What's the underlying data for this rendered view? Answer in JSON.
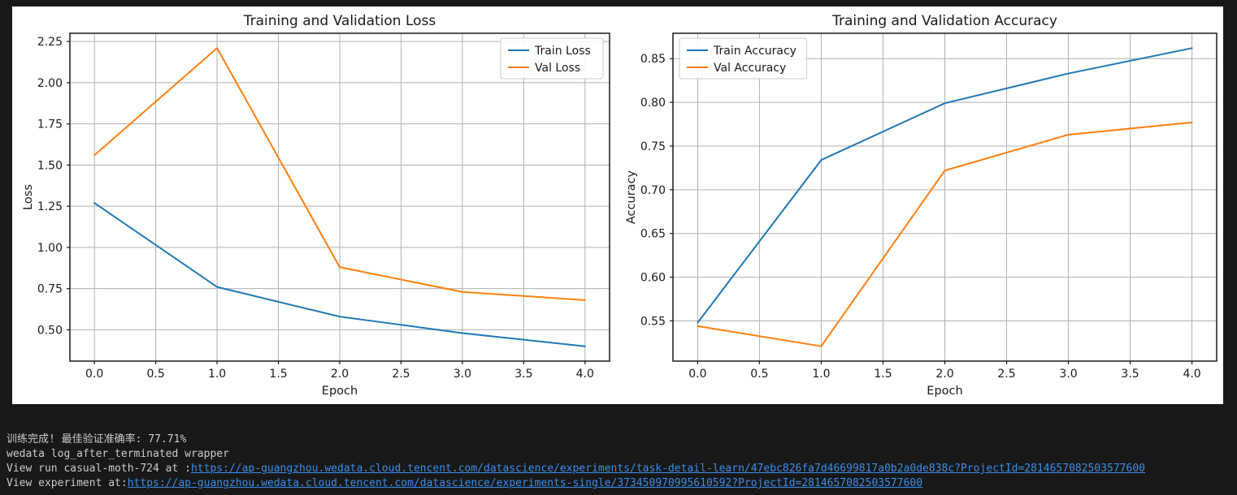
{
  "page": {
    "background": "#181818",
    "figure_background": "#ffffff"
  },
  "chart_data": [
    {
      "type": "line",
      "name": "loss-chart",
      "title": "Training and Validation Loss",
      "xlabel": "Epoch",
      "ylabel": "Loss",
      "x": [
        0,
        1,
        2,
        3,
        4
      ],
      "series": [
        {
          "name": "Train Loss",
          "color": "#1f77b4",
          "values": [
            1.27,
            0.76,
            0.58,
            0.48,
            0.4
          ]
        },
        {
          "name": "Val Loss",
          "color": "#ff7f0e",
          "values": [
            1.56,
            2.21,
            0.88,
            0.73,
            0.68
          ]
        }
      ],
      "xlim": [
        -0.2,
        4.2
      ],
      "ylim": [
        0.31,
        2.3
      ],
      "xticks": [
        0.0,
        0.5,
        1.0,
        1.5,
        2.0,
        2.5,
        3.0,
        3.5,
        4.0
      ],
      "xtick_labels": [
        "0.0",
        "0.5",
        "1.0",
        "1.5",
        "2.0",
        "2.5",
        "3.0",
        "3.5",
        "4.0"
      ],
      "yticks": [
        0.5,
        0.75,
        1.0,
        1.25,
        1.5,
        1.75,
        2.0,
        2.25
      ],
      "ytick_labels": [
        "0.50",
        "0.75",
        "1.00",
        "1.25",
        "1.50",
        "1.75",
        "2.00",
        "2.25"
      ],
      "grid": true,
      "legend_position": "upper-right"
    },
    {
      "type": "line",
      "name": "accuracy-chart",
      "title": "Training and Validation Accuracy",
      "xlabel": "Epoch",
      "ylabel": "Accuracy",
      "x": [
        0,
        1,
        2,
        3,
        4
      ],
      "series": [
        {
          "name": "Train Accuracy",
          "color": "#1f77b4",
          "values": [
            0.548,
            0.734,
            0.799,
            0.833,
            0.862
          ]
        },
        {
          "name": "Val Accuracy",
          "color": "#ff7f0e",
          "values": [
            0.544,
            0.521,
            0.722,
            0.763,
            0.777
          ]
        }
      ],
      "xlim": [
        -0.2,
        4.2
      ],
      "ylim": [
        0.504,
        0.879
      ],
      "xticks": [
        0.0,
        0.5,
        1.0,
        1.5,
        2.0,
        2.5,
        3.0,
        3.5,
        4.0
      ],
      "xtick_labels": [
        "0.0",
        "0.5",
        "1.0",
        "1.5",
        "2.0",
        "2.5",
        "3.0",
        "3.5",
        "4.0"
      ],
      "yticks": [
        0.55,
        0.6,
        0.65,
        0.7,
        0.75,
        0.8,
        0.85
      ],
      "ytick_labels": [
        "0.55",
        "0.60",
        "0.65",
        "0.70",
        "0.75",
        "0.80",
        "0.85"
      ],
      "grid": true,
      "legend_position": "upper-left"
    }
  ],
  "chart_style": {
    "grid_color": "#b0b0b0",
    "frame_color": "#1a1a1a",
    "text_color": "#1a1a1a",
    "legend_border_color": "#cccccc"
  },
  "terminal": {
    "text_color": "#cccccc",
    "link_color": "#3b8eea",
    "lines": [
      {
        "text": "训练完成! 最佳验证准确率: 77.71%"
      },
      {
        "text": "wedata log_after_terminated wrapper"
      },
      {
        "prefix": "View run casual-moth-724 at :",
        "link": "https://ap-guangzhou.wedata.cloud.tencent.com/datascience/experiments/task-detail-learn/47ebc826fa7d46699817a0b2a0de838c?ProjectId=2814657082503577600"
      },
      {
        "prefix": "View experiment at:",
        "link": "https://ap-guangzhou.wedata.cloud.tencent.com/datascience/experiments-single/373450970995610592?ProjectId=2814657082503577600"
      }
    ]
  }
}
